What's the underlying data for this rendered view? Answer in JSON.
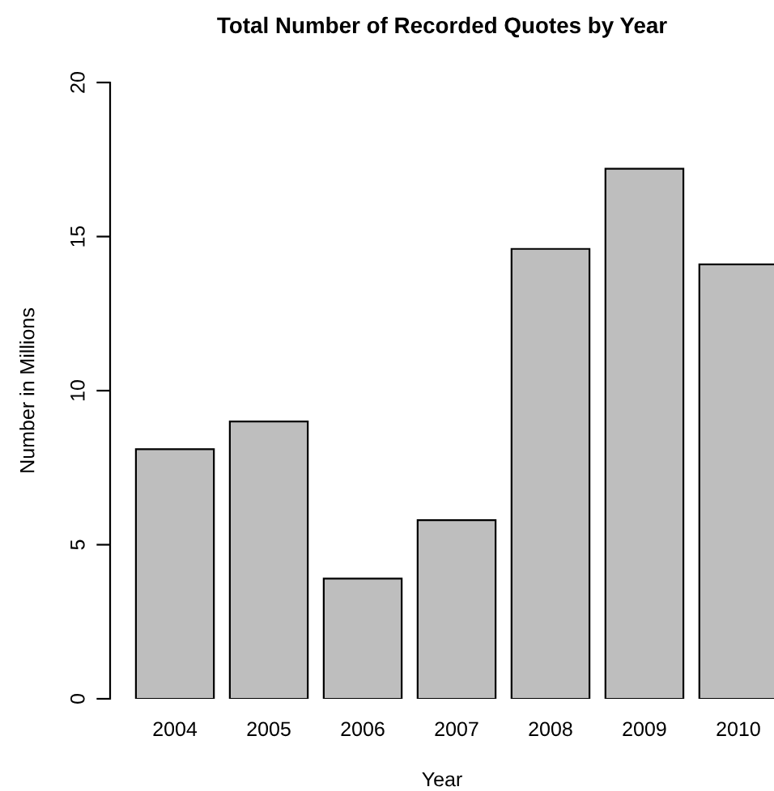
{
  "chart_data": {
    "type": "bar",
    "title": "Total Number of Recorded Quotes by Year",
    "xlabel": "Year",
    "ylabel": "Number in Millions",
    "categories": [
      "2004",
      "2005",
      "2006",
      "2007",
      "2008",
      "2009",
      "2010"
    ],
    "values": [
      8.1,
      9.0,
      3.9,
      5.8,
      14.6,
      17.2,
      14.1
    ],
    "color": "#bebebe",
    "ylim": [
      0,
      20
    ],
    "yticks": [
      0,
      5,
      10,
      15,
      20
    ],
    "grid": false,
    "legend": false
  }
}
